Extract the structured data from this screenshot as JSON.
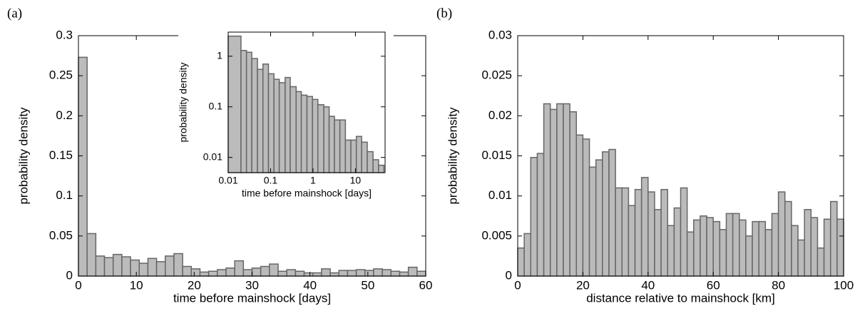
{
  "chart_data": [
    {
      "type": "histogram",
      "panel_label": "(a)",
      "xlabel": "time before mainshock [days]",
      "ylabel": "probability density",
      "color": "#bbbbbb",
      "log_x": false,
      "log_y": false,
      "bins": [
        0,
        1.5,
        3,
        4.5,
        6,
        7.5,
        9,
        10.5,
        12,
        13.5,
        15,
        16.5,
        18,
        19.5,
        21,
        22.5,
        24,
        25.5,
        27,
        28.5,
        30,
        31.5,
        33,
        34.5,
        36,
        37.5,
        39,
        40.5,
        42,
        43.5,
        45,
        46.5,
        48,
        49.5,
        51,
        52.5,
        54,
        55.5,
        57,
        58.5,
        60
      ],
      "values": [
        0.273,
        0.053,
        0.025,
        0.023,
        0.027,
        0.024,
        0.02,
        0.016,
        0.022,
        0.018,
        0.025,
        0.028,
        0.012,
        0.009,
        0.005,
        0.006,
        0.008,
        0.01,
        0.019,
        0.008,
        0.01,
        0.012,
        0.015,
        0.006,
        0.008,
        0.006,
        0.004,
        0.004,
        0.009,
        0.004,
        0.007,
        0.007,
        0.008,
        0.007,
        0.009,
        0.008,
        0.006,
        0.005,
        0.011,
        0.006
      ],
      "xlim": [
        0,
        60
      ],
      "ylim": [
        0,
        0.3
      ],
      "xticks": [
        0,
        10,
        20,
        30,
        40,
        50,
        60
      ],
      "yticks": [
        0,
        0.05,
        0.1,
        0.15,
        0.2,
        0.25,
        0.3
      ]
    },
    {
      "type": "histogram",
      "xlabel": "time before mainshock [days]",
      "ylabel": "probability density",
      "color": "#bbbbbb",
      "log_x": true,
      "log_y": true,
      "bins": [
        0.01,
        0.02,
        0.027,
        0.036,
        0.049,
        0.066,
        0.089,
        0.12,
        0.16,
        0.22,
        0.29,
        0.4,
        0.53,
        0.72,
        0.97,
        1.3,
        1.8,
        2.4,
        3.2,
        4.3,
        5.8,
        7.8,
        10.5,
        14,
        19,
        26,
        35,
        47
      ],
      "values": [
        2.5,
        1.3,
        1.2,
        0.9,
        0.55,
        0.7,
        0.45,
        0.35,
        0.3,
        0.38,
        0.25,
        0.2,
        0.17,
        0.16,
        0.14,
        0.11,
        0.1,
        0.065,
        0.055,
        0.055,
        0.022,
        0.022,
        0.026,
        0.02,
        0.013,
        0.009,
        0.007
      ],
      "xlim": [
        0.01,
        50
      ],
      "ylim": [
        0.005,
        3
      ],
      "xticks": [
        0.01,
        0.1,
        1,
        10
      ],
      "yticks": [
        0.01,
        0.1,
        1
      ]
    },
    {
      "type": "histogram",
      "panel_label": "(b)",
      "xlabel": "distance relative to mainshock [km]",
      "ylabel": "probability density",
      "color": "#bbbbbb",
      "log_x": false,
      "log_y": false,
      "bins": [
        0,
        2,
        4,
        6,
        8,
        10,
        12,
        14,
        16,
        18,
        20,
        22,
        24,
        26,
        28,
        30,
        32,
        34,
        36,
        38,
        40,
        42,
        44,
        46,
        48,
        50,
        52,
        54,
        56,
        58,
        60,
        62,
        64,
        66,
        68,
        70,
        72,
        74,
        76,
        78,
        80,
        82,
        84,
        86,
        88,
        90,
        92,
        94,
        96,
        98,
        100
      ],
      "values": [
        0.0035,
        0.0053,
        0.0148,
        0.0153,
        0.0215,
        0.0208,
        0.0215,
        0.0215,
        0.0205,
        0.0176,
        0.0171,
        0.0136,
        0.0145,
        0.0155,
        0.0158,
        0.011,
        0.011,
        0.0088,
        0.0108,
        0.0123,
        0.0105,
        0.0083,
        0.0108,
        0.0063,
        0.0085,
        0.011,
        0.0055,
        0.007,
        0.0075,
        0.0073,
        0.0068,
        0.0058,
        0.0078,
        0.0078,
        0.007,
        0.005,
        0.0068,
        0.0068,
        0.0058,
        0.0078,
        0.0105,
        0.0093,
        0.0063,
        0.0045,
        0.0083,
        0.0073,
        0.0035,
        0.0071,
        0.0093,
        0.0071
      ],
      "xlim": [
        0,
        100
      ],
      "ylim": [
        0,
        0.03
      ],
      "xticks": [
        0,
        20,
        40,
        60,
        80,
        100
      ],
      "yticks": [
        0,
        0.005,
        0.01,
        0.015,
        0.02,
        0.025,
        0.03
      ]
    }
  ]
}
